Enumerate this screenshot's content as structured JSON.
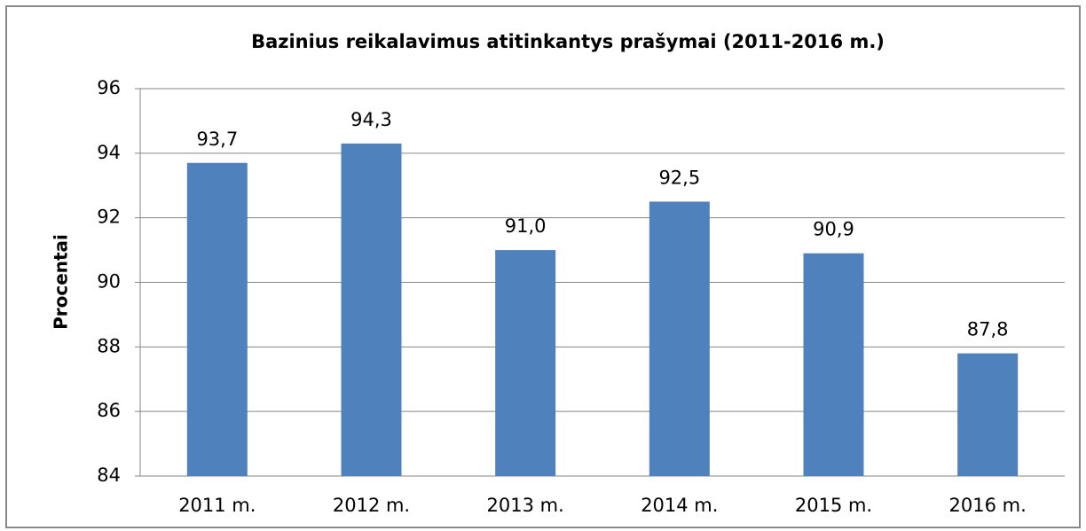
{
  "chart_data": {
    "type": "bar",
    "title": "Bazinius reikalavimus atitinkantys prašymai (2011-2016 m.)",
    "y_label": "Procentai",
    "categories": [
      "2011 m.",
      "2012 m.",
      "2013 m.",
      "2014 m.",
      "2015 m.",
      "2016 m."
    ],
    "values": [
      93.7,
      94.3,
      91.0,
      92.5,
      90.9,
      87.8
    ],
    "value_labels": [
      "93,7",
      "94,3",
      "91,0",
      "92,5",
      "90,9",
      "87,8"
    ],
    "color": "#4f81bd",
    "ylim": [
      84,
      96
    ],
    "yticks": [
      84,
      86,
      88,
      90,
      92,
      94,
      96
    ],
    "grid": true
  }
}
